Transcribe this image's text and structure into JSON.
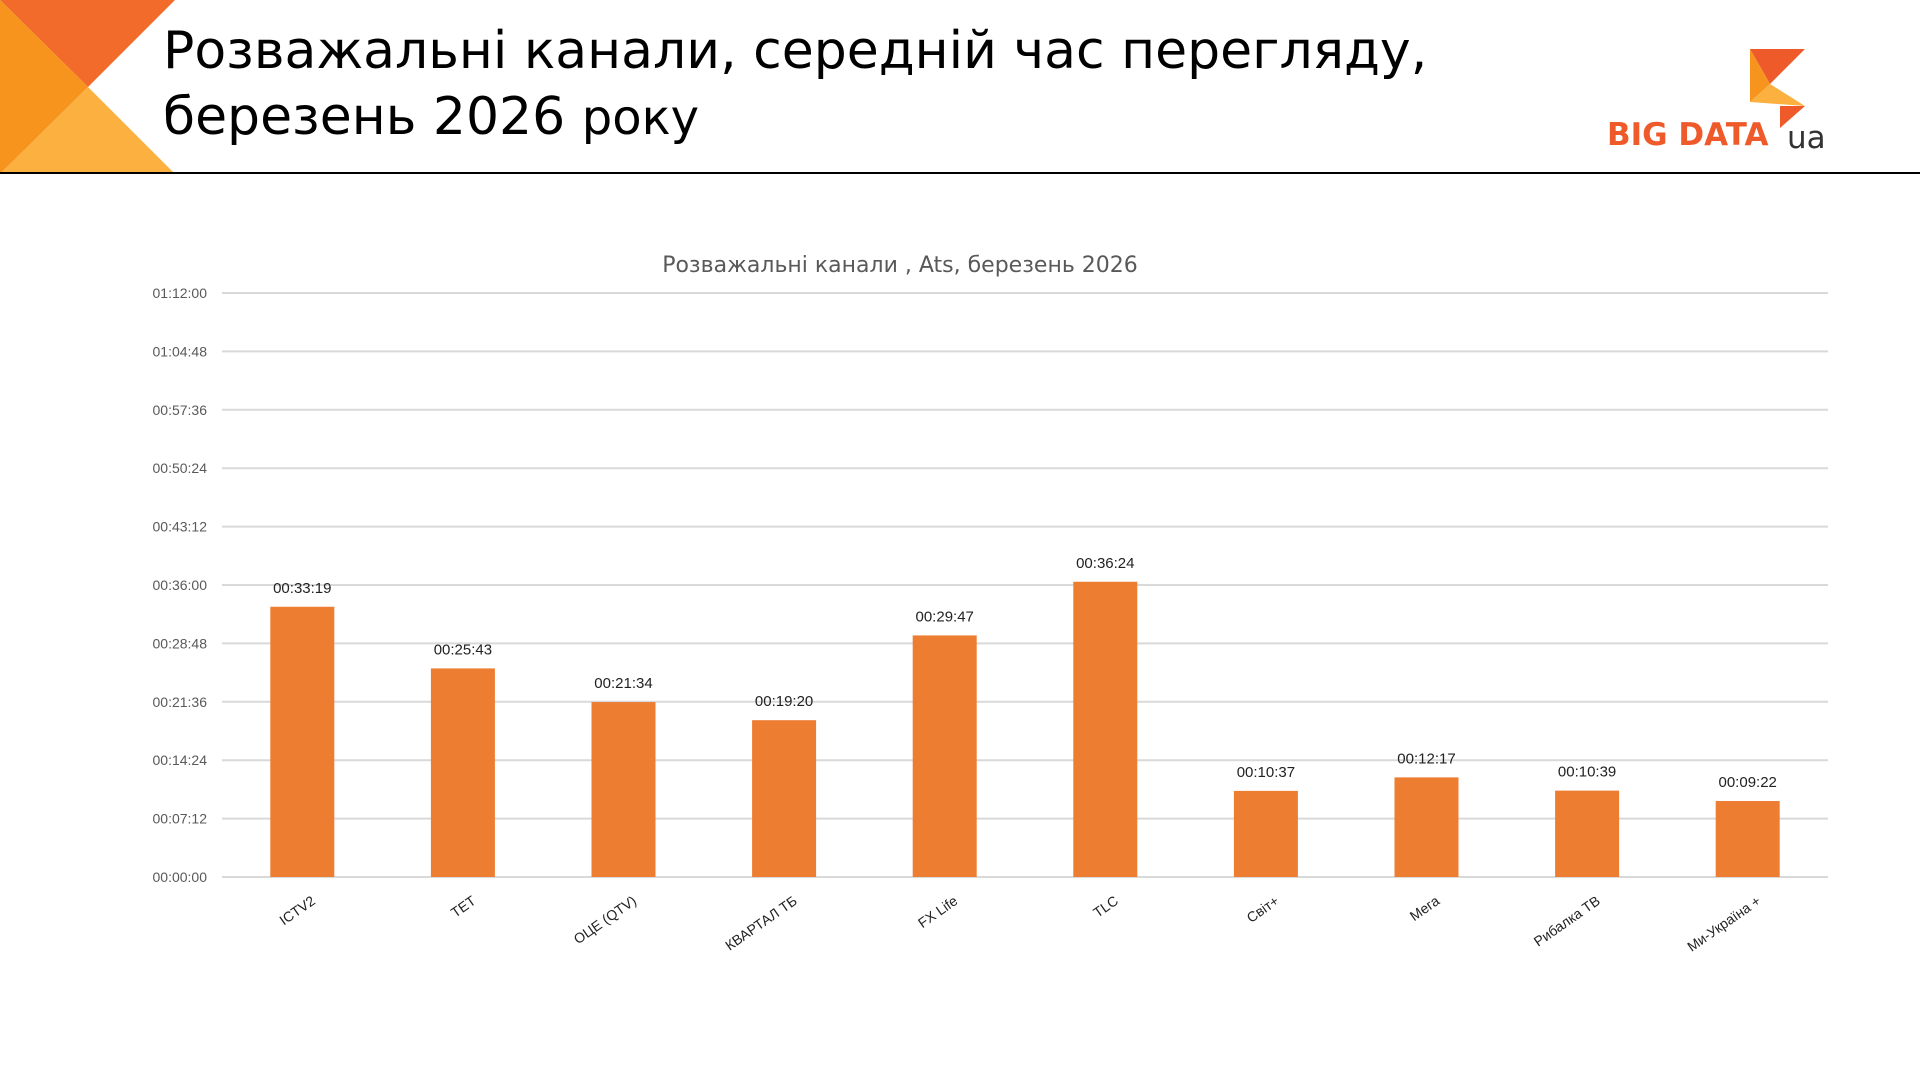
{
  "header": {
    "title_line1": "Розважальні канали, середній час перегляду,",
    "title_line2_main": "березень 2026 ",
    "title_line2_tail": "року"
  },
  "logo": {
    "text": "BIG DATA",
    "suffix": "ua",
    "colors": {
      "primary": "#ef5a2a",
      "accent": "#f7a13b"
    }
  },
  "colors": {
    "bar": "#ed7d31",
    "grid": "#d9d9d9",
    "corner_dark": "#f26b2a",
    "corner_mid": "#f7941d",
    "corner_light": "#fbb040"
  },
  "chart_data": {
    "type": "bar",
    "title": "Розважальні канали , Ats, березень 2026",
    "xlabel": "",
    "ylabel": "",
    "ylim": [
      0,
      4320
    ],
    "grid": true,
    "y_ticks": [
      "00:00:00",
      "00:07:12",
      "00:14:24",
      "00:21:36",
      "00:28:48",
      "00:36:00",
      "00:43:12",
      "00:50:24",
      "00:57:36",
      "01:04:48",
      "01:12:00"
    ],
    "categories": [
      "ICTV2",
      "ТЕТ",
      "ОЦЕ (QTV)",
      "КВАРТАЛ ТБ",
      "FX Life",
      "TLC",
      "Світ+",
      "Мега",
      "Рибалка ТВ",
      "Ми-Україна +"
    ],
    "labels": [
      "00:33:19",
      "00:25:43",
      "00:21:34",
      "00:19:20",
      "00:29:47",
      "00:36:24",
      "00:10:37",
      "00:12:17",
      "00:10:39",
      "00:09:22"
    ],
    "values_seconds": [
      1999,
      1543,
      1294,
      1160,
      1787,
      2184,
      637,
      737,
      639,
      562
    ]
  }
}
